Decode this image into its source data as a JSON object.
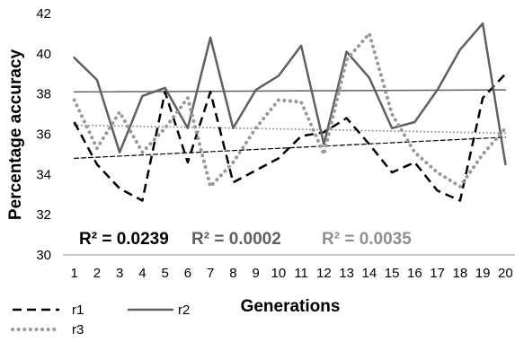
{
  "chart_data": {
    "type": "line",
    "xlabel": "Generations",
    "ylabel": "Percentage accuracy",
    "ylim": [
      30,
      42
    ],
    "yticks": [
      30,
      32,
      34,
      36,
      38,
      40,
      42
    ],
    "x": [
      1,
      2,
      3,
      4,
      5,
      6,
      7,
      8,
      9,
      10,
      11,
      12,
      13,
      14,
      15,
      16,
      17,
      18,
      19,
      20
    ],
    "grid": false,
    "legend_position": "bottom-left",
    "series": [
      {
        "name": "r1",
        "style": "dashed",
        "color": "#000000",
        "values": [
          36.6,
          34.5,
          33.3,
          32.7,
          38.1,
          34.6,
          38.1,
          33.6,
          34.2,
          34.8,
          35.9,
          36.1,
          36.8,
          35.5,
          34.1,
          34.6,
          33.2,
          32.7,
          37.8,
          39.0
        ],
        "trend": [
          34.8,
          35.85
        ],
        "r2": "R² = 0.0239"
      },
      {
        "name": "r2",
        "style": "solid",
        "color": "#606060",
        "values": [
          39.8,
          38.7,
          35.1,
          37.9,
          38.3,
          36.3,
          40.8,
          36.3,
          38.2,
          38.9,
          40.4,
          35.5,
          40.1,
          38.8,
          36.3,
          36.6,
          38.2,
          40.2,
          41.5,
          34.5
        ],
        "trend": [
          38.1,
          38.2
        ],
        "r2": "R² = 0.0002"
      },
      {
        "name": "r3",
        "style": "dotted",
        "color": "#999999",
        "values": [
          37.7,
          35.3,
          37.1,
          35.1,
          36.3,
          37.8,
          33.4,
          34.6,
          36.3,
          37.7,
          37.6,
          35.0,
          39.7,
          41.0,
          37.0,
          35.1,
          34.1,
          33.4,
          35.0,
          36.3
        ],
        "trend": [
          36.45,
          36.05
        ],
        "r2": "R² = 0.0035"
      }
    ]
  }
}
